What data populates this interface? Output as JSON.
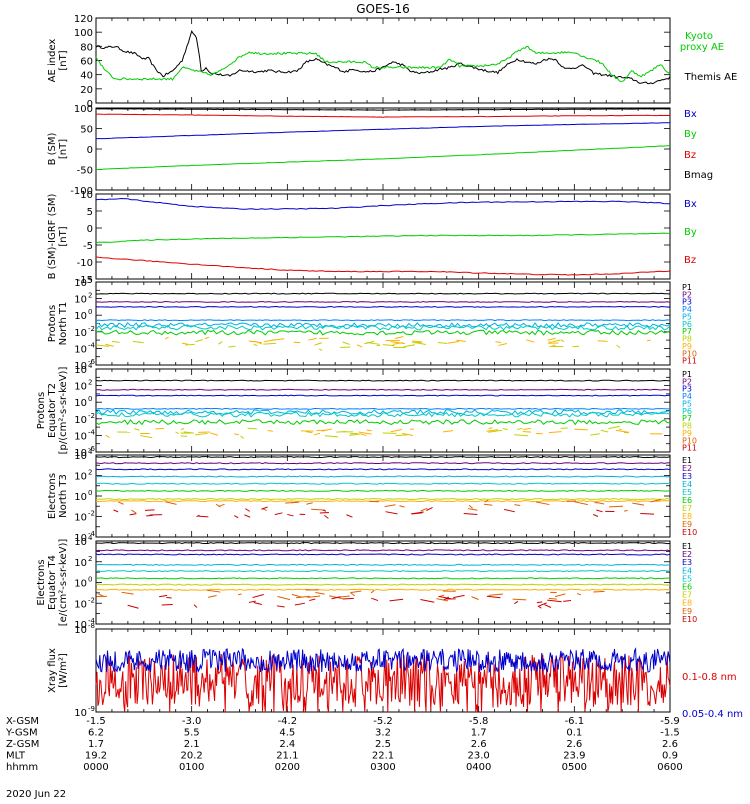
{
  "figure": {
    "title": "GOES-16",
    "date": "2020 Jun 22",
    "colors": {
      "black": "#000000",
      "blue": "#0000cc",
      "green": "#00cc00",
      "red": "#dd0000",
      "kyoto": "#00dd00"
    }
  },
  "chart_data": [
    {
      "type": "line",
      "panel": "ae",
      "ylabel": [
        "AE index",
        "[nT]"
      ],
      "ylim": [
        0,
        120
      ],
      "ticks": [
        "0",
        "20",
        "40",
        "60",
        "80",
        "100",
        "120"
      ],
      "legend": [
        {
          "name": "Kyoto",
          "name2": "proxy AE",
          "color": "#00cc00"
        },
        {
          "name": "Themis AE",
          "color": "#000000"
        }
      ],
      "series": [
        {
          "name": "Themis AE",
          "color": "#000000",
          "x": [
            0,
            0.1,
            0.2,
            0.3,
            0.4,
            0.5,
            0.55,
            0.62,
            0.7,
            0.8,
            0.9,
            1.0,
            1.02,
            1.05,
            1.08,
            1.1,
            1.15,
            1.2,
            1.3,
            1.4,
            1.5,
            1.6,
            1.7,
            1.8,
            1.9,
            2.0,
            2.1,
            2.2,
            2.3,
            2.4,
            2.5,
            2.6,
            2.7,
            2.8,
            2.9,
            3.0,
            3.1,
            3.2,
            3.3,
            3.4,
            3.5,
            3.6,
            3.7,
            3.8,
            3.9,
            4.0,
            4.1,
            4.2,
            4.3,
            4.4,
            4.5,
            4.6,
            4.7,
            4.8,
            4.9,
            5.0,
            5.1,
            5.2,
            5.3,
            5.4,
            5.5,
            5.6,
            5.7,
            5.8,
            5.9,
            6.0
          ],
          "y": [
            80,
            78,
            80,
            73,
            70,
            62,
            63,
            48,
            38,
            45,
            60,
            100,
            98,
            92,
            70,
            45,
            50,
            42,
            40,
            38,
            46,
            45,
            44,
            46,
            44,
            44,
            45,
            58,
            62,
            55,
            50,
            44,
            48,
            44,
            45,
            50,
            58,
            54,
            44,
            42,
            44,
            48,
            50,
            56,
            52,
            48,
            45,
            43,
            54,
            62,
            58,
            55,
            62,
            62,
            48,
            50,
            53,
            42,
            40,
            38,
            36,
            34,
            28,
            28,
            32,
            36
          ]
        },
        {
          "name": "Kyoto proxy AE",
          "color": "#00cc00",
          "x": [
            0,
            0.1,
            0.2,
            0.3,
            0.8,
            0.9,
            1.2,
            1.3,
            1.4,
            1.5,
            1.6,
            1.7,
            2.3,
            2.4,
            2.8,
            2.9,
            3.2,
            3.3,
            3.6,
            3.7,
            3.8,
            4.0,
            4.2,
            4.3,
            4.35,
            4.5,
            4.6,
            5.0,
            5.1,
            5.2,
            5.3,
            5.4,
            5.5,
            5.6,
            5.7,
            5.8,
            5.9,
            6.0
          ],
          "y": [
            65,
            45,
            34,
            34,
            34,
            50,
            40,
            45,
            55,
            65,
            72,
            70,
            70,
            58,
            58,
            50,
            50,
            50,
            50,
            62,
            52,
            52,
            55,
            62,
            68,
            80,
            70,
            72,
            65,
            62,
            55,
            38,
            30,
            45,
            38,
            45,
            55,
            40
          ]
        }
      ]
    },
    {
      "type": "line",
      "panel": "bsm",
      "ylabel": [
        "B (SM)",
        "[nT]"
      ],
      "ylim": [
        -100,
        100
      ],
      "ticks": [
        "-100",
        "-50",
        "0",
        "50",
        "100"
      ],
      "legend": [
        {
          "name": "Bx",
          "color": "#0000cc"
        },
        {
          "name": "By",
          "color": "#00cc00"
        },
        {
          "name": "Bz",
          "color": "#dd0000"
        },
        {
          "name": "Bmag",
          "color": "#000000"
        }
      ],
      "series": [
        {
          "name": "Bmag",
          "color": "#000000",
          "x": [
            0,
            3,
            6
          ],
          "y": [
            98,
            95,
            98
          ]
        },
        {
          "name": "Bz",
          "color": "#dd0000",
          "x": [
            0,
            1,
            2,
            3,
            4,
            5,
            6
          ],
          "y": [
            85,
            83,
            80,
            78,
            79,
            81,
            82
          ]
        },
        {
          "name": "Bx",
          "color": "#0000cc",
          "x": [
            0,
            1,
            2,
            3,
            4,
            5,
            6
          ],
          "y": [
            25,
            33,
            41,
            48,
            55,
            60,
            64
          ]
        },
        {
          "name": "By",
          "color": "#00cc00",
          "x": [
            0,
            1,
            2,
            3,
            4,
            5,
            6
          ],
          "y": [
            -50,
            -40,
            -32,
            -24,
            -14,
            -3,
            8
          ]
        }
      ]
    },
    {
      "type": "line",
      "panel": "bigrf",
      "ylabel": [
        "B (SM)-IGRF (SM)",
        "[nT]"
      ],
      "ylim": [
        -15,
        10
      ],
      "ticks": [
        "-15",
        "-10",
        "-5",
        "0",
        "5",
        "10"
      ],
      "legend": [
        {
          "name": "Bx",
          "color": "#0000cc"
        },
        {
          "name": "By",
          "color": "#00cc00"
        },
        {
          "name": "Bz",
          "color": "#dd0000"
        }
      ],
      "series": [
        {
          "name": "Bx",
          "color": "#0000cc",
          "x": [
            0,
            0.3,
            0.6,
            1.0,
            1.5,
            2.0,
            2.5,
            3.0,
            3.5,
            4.0,
            4.5,
            5.0,
            5.5,
            6.0
          ],
          "y": [
            8.3,
            8.6,
            7.6,
            6.4,
            5.6,
            5.6,
            5.8,
            6.6,
            7.2,
            7.6,
            7.7,
            7.8,
            7.8,
            7.2
          ]
        },
        {
          "name": "By",
          "color": "#00cc00",
          "x": [
            0,
            0.5,
            1.0,
            1.5,
            2.0,
            2.5,
            3.0,
            3.5,
            4.0,
            4.5,
            5.0,
            5.5,
            6.0
          ],
          "y": [
            -4.3,
            -3.6,
            -3.2,
            -3.0,
            -2.8,
            -2.6,
            -2.4,
            -2.2,
            -2.2,
            -2.2,
            -2.0,
            -1.8,
            -1.6
          ]
        },
        {
          "name": "Bz",
          "color": "#dd0000",
          "x": [
            0,
            0.3,
            0.6,
            1.0,
            1.5,
            2.0,
            2.5,
            3.0,
            3.5,
            4.0,
            4.5,
            5.0,
            5.5,
            6.0
          ],
          "y": [
            -8.6,
            -9.2,
            -9.8,
            -10.6,
            -11.6,
            -12.4,
            -12.8,
            -12.8,
            -12.8,
            -13.2,
            -13.6,
            -13.8,
            -13.4,
            -12.6
          ]
        }
      ]
    },
    {
      "type": "line",
      "panel": "pnorth",
      "ylabel": [
        "Protons",
        "North T1"
      ],
      "log": true,
      "ylim_exp": [
        -6,
        4
      ],
      "tick_exps": [
        -6,
        -4,
        -2,
        0,
        2,
        4
      ],
      "channels": [
        {
          "name": "P1",
          "color": "#000000",
          "level": 2.6
        },
        {
          "name": "P2",
          "color": "#6a0080",
          "level": 1.6
        },
        {
          "name": "P3",
          "color": "#0000cc",
          "level": 1.0
        },
        {
          "name": "P4",
          "color": "#0080ff",
          "level": -0.6
        },
        {
          "name": "P5",
          "color": "#00b0e0",
          "level": -1.2
        },
        {
          "name": "P6",
          "color": "#00c8c8",
          "level": -1.5
        },
        {
          "name": "P7",
          "color": "#00cc00",
          "level": -2.1
        },
        {
          "name": "P8",
          "color": "#c0d000",
          "level": -3.6
        },
        {
          "name": "P9",
          "color": "#ffb000",
          "level": -3.3
        },
        {
          "name": "P10",
          "color": "#e06000",
          "level": null
        },
        {
          "name": "P11",
          "color": "#cc0000",
          "level": null
        }
      ]
    },
    {
      "type": "line",
      "panel": "pequator",
      "ylabel": [
        "Protons",
        "Equator T2",
        "[p/(cm²-s-sr-keV)]"
      ],
      "log": true,
      "ylim_exp": [
        -6,
        4
      ],
      "tick_exps": [
        -6,
        -4,
        -2,
        0,
        2,
        4
      ],
      "channels": [
        {
          "name": "P1",
          "color": "#000000",
          "level": 2.6
        },
        {
          "name": "P2",
          "color": "#6a0080",
          "level": 1.5
        },
        {
          "name": "P3",
          "color": "#0000cc",
          "level": 0.8
        },
        {
          "name": "P4",
          "color": "#0080ff",
          "level": -0.8
        },
        {
          "name": "P5",
          "color": "#00b0e0",
          "level": -1.2
        },
        {
          "name": "P6",
          "color": "#00c8c8",
          "level": -1.5
        },
        {
          "name": "P7",
          "color": "#00cc00",
          "level": -2.4
        },
        {
          "name": "P8",
          "color": "#c0d000",
          "level": -3.6
        },
        {
          "name": "P9",
          "color": "#ffb000",
          "level": -3.6
        },
        {
          "name": "P10",
          "color": "#e06000",
          "level": null
        },
        {
          "name": "P11",
          "color": "#cc0000",
          "level": null
        }
      ]
    },
    {
      "type": "line",
      "panel": "enorth",
      "ylabel": [
        "Electrons",
        "North T3"
      ],
      "log": true,
      "ylim_exp": [
        -4,
        4
      ],
      "tick_exps": [
        -4,
        -2,
        0,
        2,
        4
      ],
      "channels": [
        {
          "name": "E1",
          "color": "#000000",
          "level": 3.8
        },
        {
          "name": "E2",
          "color": "#6a0080",
          "level": 3.2
        },
        {
          "name": "E3",
          "color": "#0000cc",
          "level": 2.6
        },
        {
          "name": "E4",
          "color": "#00b0e0",
          "level": 1.9
        },
        {
          "name": "E5",
          "color": "#00c8c8",
          "level": 1.2
        },
        {
          "name": "E6",
          "color": "#00cc00",
          "level": 0.5
        },
        {
          "name": "E7",
          "color": "#c0d000",
          "level": -0.3
        },
        {
          "name": "E8",
          "color": "#ffb000",
          "level": -0.5
        },
        {
          "name": "E9",
          "color": "#e06000",
          "level": -1.0
        },
        {
          "name": "E10",
          "color": "#cc0000",
          "level": -1.6
        }
      ]
    },
    {
      "type": "line",
      "panel": "eequator",
      "ylabel": [
        "Electrons",
        "Equator T4",
        "[e/(cm²-s-sr-keV)]"
      ],
      "log": true,
      "ylim_exp": [
        -4,
        4
      ],
      "tick_exps": [
        -4,
        -2,
        0,
        2,
        4
      ],
      "channels": [
        {
          "name": "E1",
          "color": "#000000",
          "level": 3.8
        },
        {
          "name": "E2",
          "color": "#6a0080",
          "level": 3.1
        },
        {
          "name": "E3",
          "color": "#0000cc",
          "level": 2.7
        },
        {
          "name": "E4",
          "color": "#00b0e0",
          "level": 1.7
        },
        {
          "name": "E5",
          "color": "#00c8c8",
          "level": 1.1
        },
        {
          "name": "E6",
          "color": "#00cc00",
          "level": 0.4
        },
        {
          "name": "E7",
          "color": "#c0d000",
          "level": -0.2
        },
        {
          "name": "E8",
          "color": "#ffb000",
          "level": -0.7
        },
        {
          "name": "E9",
          "color": "#e06000",
          "level": -1.2
        },
        {
          "name": "E10",
          "color": "#cc0000",
          "level": -1.8
        }
      ]
    },
    {
      "type": "line",
      "panel": "xray",
      "ylabel": [
        "Xray flux",
        "[W/m²]"
      ],
      "log": true,
      "ylim_exp": [
        -9,
        -8
      ],
      "tick_exps": [
        -9,
        -8
      ],
      "legend": [
        {
          "name": "0.1-0.8 nm",
          "color": "#dd0000"
        },
        {
          "name": "0.05-0.4 nm",
          "color": "#0000cc"
        }
      ]
    }
  ],
  "xaxis": {
    "range_hours": [
      0,
      6
    ],
    "rows": [
      {
        "label": "X-GSM",
        "values": [
          "-1.5",
          "-3.0",
          "-4.2",
          "-5.2",
          "-5.8",
          "-6.1",
          "-5.9"
        ]
      },
      {
        "label": "Y-GSM",
        "values": [
          "6.2",
          "5.5",
          "4.5",
          "3.2",
          "1.7",
          "0.1",
          "-1.5"
        ]
      },
      {
        "label": "Z-GSM",
        "values": [
          "1.7",
          "2.1",
          "2.4",
          "2.5",
          "2.6",
          "2.6",
          "2.6"
        ]
      },
      {
        "label": "MLT",
        "values": [
          "19.2",
          "20.2",
          "21.1",
          "22.1",
          "23.0",
          "23.9",
          "0.9"
        ]
      },
      {
        "label": "hhmm",
        "values": [
          "0000",
          "0100",
          "0200",
          "0300",
          "0400",
          "0500",
          "0600"
        ]
      }
    ]
  }
}
